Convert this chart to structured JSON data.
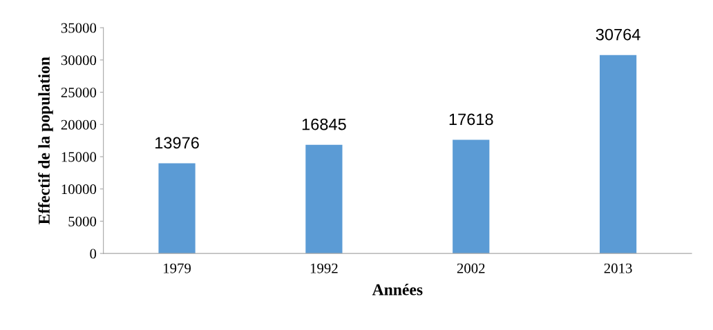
{
  "chart_data": {
    "type": "bar",
    "xlabel": "Années",
    "ylabel": "Effectif de la population",
    "categories": [
      "1979",
      "1992",
      "2002",
      "2013"
    ],
    "values": [
      13976,
      16845,
      17618,
      30764
    ],
    "color": "#5b9bd5",
    "ylim": [
      0,
      35000
    ],
    "yticks": [
      0,
      5000,
      10000,
      15000,
      20000,
      25000,
      30000,
      35000
    ],
    "data_labels": true,
    "grid": false,
    "legend": false
  }
}
